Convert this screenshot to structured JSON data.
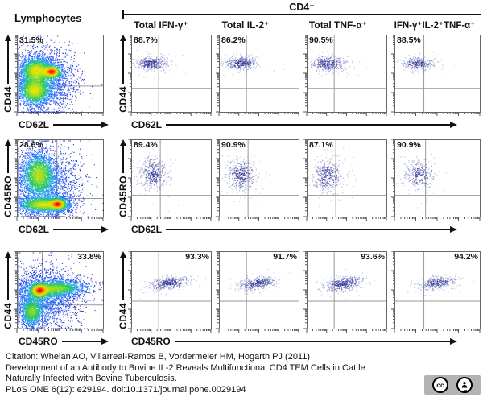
{
  "header": {
    "lymphocytes_label": "Lymphocytes",
    "cd4_label": "CD4⁺",
    "columns": [
      "Total IFN-γ⁺",
      "Total IL-2⁺",
      "Total TNF-α⁺",
      "IFN-γ⁺IL-2⁺TNF-α⁺"
    ]
  },
  "chart_data": {
    "type": "scatter",
    "subtype": "flow-cytometry-dot-plots",
    "axes_scale": "log",
    "legend": "none",
    "rows": [
      {
        "left": {
          "mode": "density",
          "pct": "31.5%",
          "pct_corner": "tl",
          "x_label": "CD62L",
          "y_label": "CD44",
          "quad_x": 0.3,
          "quad_y": 0.66,
          "clusters": [
            {
              "cx": 0.21,
              "cy": 0.45,
              "sx": 0.09,
              "sy": 0.08,
              "w": 1.1,
              "n": 1600
            },
            {
              "cx": 0.19,
              "cy": 0.72,
              "sx": 0.09,
              "sy": 0.09,
              "w": 1.1,
              "n": 1600
            },
            {
              "cx": 0.4,
              "cy": 0.47,
              "sx": 0.055,
              "sy": 0.042,
              "w": 1.8,
              "n": 900
            },
            {
              "cx": 0.28,
              "cy": 0.58,
              "sx": 0.2,
              "sy": 0.21,
              "w": 0.3,
              "n": 2600
            }
          ]
        },
        "small_y_label": "CD44",
        "small_x_label": "CD62L",
        "small_quad_x": 0.34,
        "small_quad_y": 0.69,
        "small": [
          {
            "pct": "88.7%",
            "pct_corner": "tl",
            "clusters": [
              {
                "cx": 0.24,
                "cy": 0.36,
                "sx": 0.1,
                "sy": 0.045,
                "w": 1,
                "n": 300
              },
              {
                "cx": 0.27,
                "cy": 0.37,
                "sx": 0.17,
                "sy": 0.08,
                "w": 0.25,
                "n": 80
              }
            ]
          },
          {
            "pct": "86.2%",
            "pct_corner": "tl",
            "clusters": [
              {
                "cx": 0.26,
                "cy": 0.36,
                "sx": 0.1,
                "sy": 0.045,
                "w": 1,
                "n": 300
              },
              {
                "cx": 0.29,
                "cy": 0.37,
                "sx": 0.17,
                "sy": 0.08,
                "w": 0.25,
                "n": 80
              }
            ]
          },
          {
            "pct": "90.5%",
            "pct_corner": "tl",
            "clusters": [
              {
                "cx": 0.25,
                "cy": 0.37,
                "sx": 0.11,
                "sy": 0.05,
                "w": 1,
                "n": 340
              },
              {
                "cx": 0.28,
                "cy": 0.38,
                "sx": 0.18,
                "sy": 0.08,
                "w": 0.25,
                "n": 80
              }
            ]
          },
          {
            "pct": "88.5%",
            "pct_corner": "tl",
            "clusters": [
              {
                "cx": 0.27,
                "cy": 0.36,
                "sx": 0.09,
                "sy": 0.045,
                "w": 1,
                "n": 240
              },
              {
                "cx": 0.3,
                "cy": 0.37,
                "sx": 0.15,
                "sy": 0.07,
                "w": 0.25,
                "n": 60
              }
            ]
          }
        ]
      },
      {
        "left": {
          "mode": "density",
          "pct": "28.6%",
          "pct_corner": "tl",
          "x_label": "CD62L",
          "y_label": "CD45RO",
          "quad_x": 0.46,
          "quad_y": 0.76,
          "clusters": [
            {
              "cx": 0.24,
              "cy": 0.44,
              "sx": 0.095,
              "sy": 0.14,
              "w": 1.1,
              "n": 2000
            },
            {
              "cx": 0.3,
              "cy": 0.84,
              "sx": 0.16,
              "sy": 0.05,
              "w": 1.3,
              "n": 1700
            },
            {
              "cx": 0.47,
              "cy": 0.83,
              "sx": 0.05,
              "sy": 0.04,
              "w": 1.7,
              "n": 800
            },
            {
              "cx": 0.3,
              "cy": 0.6,
              "sx": 0.22,
              "sy": 0.25,
              "w": 0.28,
              "n": 2400
            }
          ]
        },
        "small_y_label": "CD45RO",
        "small_x_label": "CD62L",
        "small_quad_x": 0.36,
        "small_quad_y": 0.72,
        "small": [
          {
            "pct": "89.4%",
            "pct_corner": "tl",
            "clusters": [
              {
                "cx": 0.26,
                "cy": 0.44,
                "sx": 0.09,
                "sy": 0.105,
                "w": 1,
                "n": 330
              },
              {
                "cx": 0.28,
                "cy": 0.46,
                "sx": 0.15,
                "sy": 0.17,
                "w": 0.25,
                "n": 90
              }
            ]
          },
          {
            "pct": "90.9%",
            "pct_corner": "tl",
            "clusters": [
              {
                "cx": 0.27,
                "cy": 0.45,
                "sx": 0.09,
                "sy": 0.1,
                "w": 1,
                "n": 330
              },
              {
                "cx": 0.29,
                "cy": 0.47,
                "sx": 0.15,
                "sy": 0.16,
                "w": 0.25,
                "n": 90
              }
            ]
          },
          {
            "pct": "87.1%",
            "pct_corner": "tl",
            "clusters": [
              {
                "cx": 0.25,
                "cy": 0.46,
                "sx": 0.095,
                "sy": 0.11,
                "w": 1,
                "n": 340
              },
              {
                "cx": 0.27,
                "cy": 0.48,
                "sx": 0.16,
                "sy": 0.17,
                "w": 0.25,
                "n": 90
              }
            ]
          },
          {
            "pct": "90.9%",
            "pct_corner": "tl",
            "clusters": [
              {
                "cx": 0.28,
                "cy": 0.44,
                "sx": 0.085,
                "sy": 0.1,
                "w": 1,
                "n": 260
              },
              {
                "cx": 0.3,
                "cy": 0.46,
                "sx": 0.14,
                "sy": 0.16,
                "w": 0.25,
                "n": 70
              }
            ]
          }
        ]
      },
      {
        "left": {
          "mode": "density",
          "pct": "33.8%",
          "pct_corner": "tr",
          "x_label": "CD45RO",
          "y_label": "CD44",
          "quad_x": 0.29,
          "quad_y": 0.69,
          "clusters": [
            {
              "cx": 0.25,
              "cy": 0.5,
              "sx": 0.055,
              "sy": 0.05,
              "w": 1.8,
              "n": 900
            },
            {
              "cx": 0.45,
              "cy": 0.47,
              "sx": 0.18,
              "sy": 0.055,
              "w": 1.0,
              "n": 1700,
              "rot": -0.06
            },
            {
              "cx": 0.16,
              "cy": 0.78,
              "sx": 0.07,
              "sy": 0.1,
              "w": 1.0,
              "n": 1300
            },
            {
              "cx": 0.3,
              "cy": 0.58,
              "sx": 0.22,
              "sy": 0.2,
              "w": 0.28,
              "n": 2400
            }
          ]
        },
        "small_y_label": "CD44",
        "small_x_label": "CD45RO",
        "small_quad_x": 0.34,
        "small_quad_y": 0.64,
        "small": [
          {
            "pct": "93.3%",
            "pct_corner": "tr",
            "clusters": [
              {
                "cx": 0.47,
                "cy": 0.4,
                "sx": 0.125,
                "sy": 0.04,
                "w": 1,
                "n": 330,
                "rot": -0.15
              },
              {
                "cx": 0.44,
                "cy": 0.42,
                "sx": 0.18,
                "sy": 0.07,
                "w": 0.25,
                "n": 90,
                "rot": -0.15
              }
            ]
          },
          {
            "pct": "91.7%",
            "pct_corner": "tr",
            "clusters": [
              {
                "cx": 0.48,
                "cy": 0.4,
                "sx": 0.12,
                "sy": 0.04,
                "w": 1,
                "n": 320,
                "rot": -0.15
              },
              {
                "cx": 0.45,
                "cy": 0.42,
                "sx": 0.17,
                "sy": 0.07,
                "w": 0.25,
                "n": 80,
                "rot": -0.15
              }
            ]
          },
          {
            "pct": "93.6%",
            "pct_corner": "tr",
            "clusters": [
              {
                "cx": 0.46,
                "cy": 0.41,
                "sx": 0.13,
                "sy": 0.045,
                "w": 1,
                "n": 360,
                "rot": -0.15
              },
              {
                "cx": 0.43,
                "cy": 0.43,
                "sx": 0.18,
                "sy": 0.075,
                "w": 0.25,
                "n": 90,
                "rot": -0.15
              }
            ]
          },
          {
            "pct": "94.2%",
            "pct_corner": "tr",
            "clusters": [
              {
                "cx": 0.5,
                "cy": 0.4,
                "sx": 0.11,
                "sy": 0.04,
                "w": 1,
                "n": 260,
                "rot": -0.15
              },
              {
                "cx": 0.47,
                "cy": 0.42,
                "sx": 0.16,
                "sy": 0.065,
                "w": 0.25,
                "n": 70,
                "rot": -0.15
              }
            ]
          }
        ]
      }
    ]
  },
  "citation": {
    "line1": "Citation: Whelan AO, Villarreal-Ramos B, Vordermeier HM, Hogarth PJ (2011)",
    "line2": "Development of an Antibody to Bovine IL-2 Reveals Multifunctional CD4 TEM Cells in Cattle",
    "line3": "Naturally Infected with Bovine Tuberculosis.",
    "line4": "PLoS ONE 6(12): e29194. doi:10.1371/journal.pone.0029194"
  },
  "license": {
    "cc": "cc",
    "by": "BY"
  },
  "colors": {
    "dot_sparse_blue": "#3c41a0",
    "density_low": "#0a0ab4",
    "density_high": "#e10a0a",
    "axis_black": "#111111",
    "box_border": "#666666",
    "quad_line": "#999999",
    "badge_grey": "#b3b3b3"
  }
}
